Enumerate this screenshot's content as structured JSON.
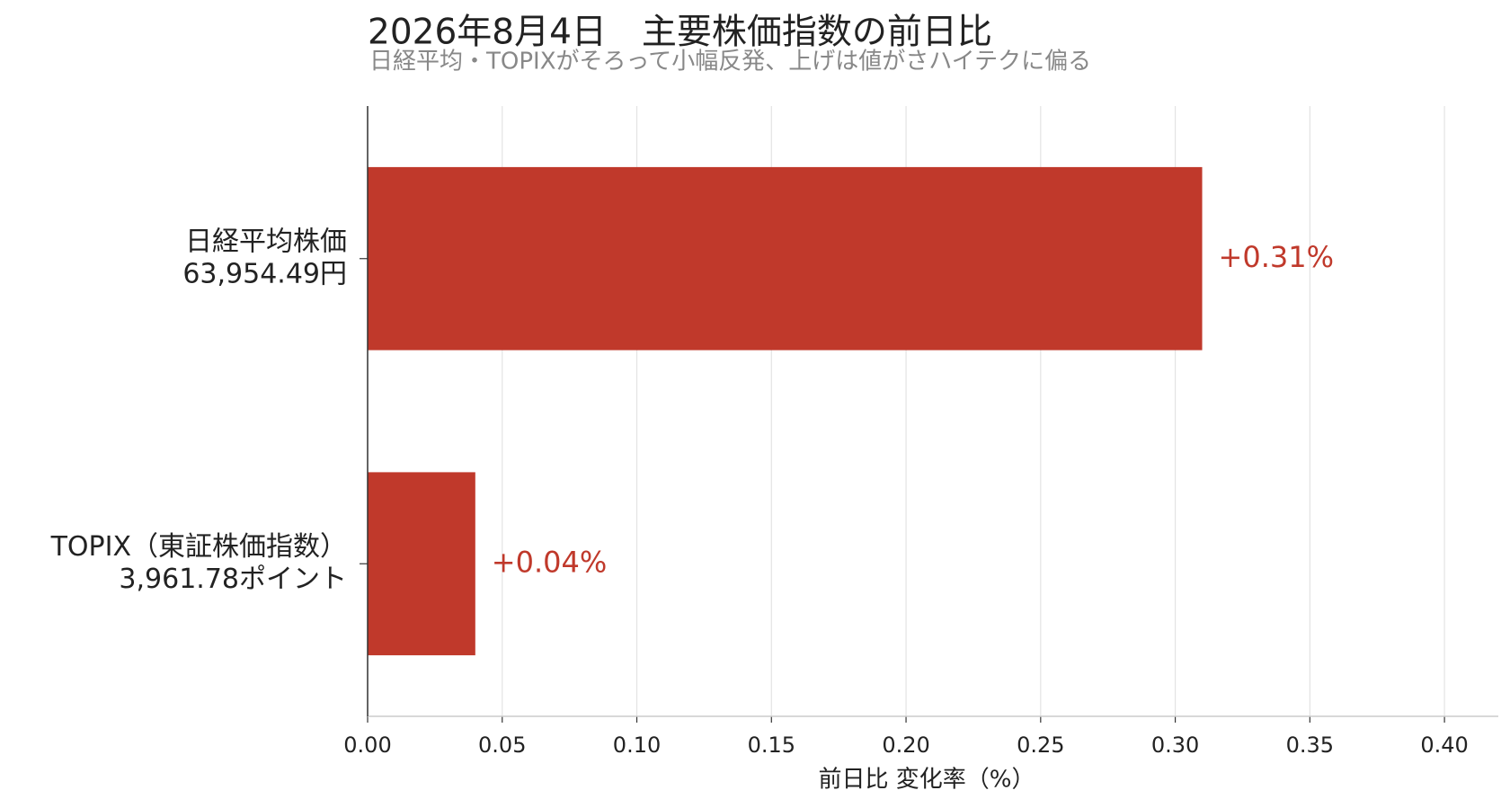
{
  "chart_data": {
    "type": "barh",
    "title": "2026年8月4日　主要株価指数の前日比",
    "subtitle": "日経平均・TOPIXがそろって小幅反発、上げは値がさハイテクに偏る",
    "xlabel": "前日比 変化率（%）",
    "categories": [
      [
        "日経平均株価",
        "63,954.49円"
      ],
      [
        "TOPIX（東証株価指数）",
        "3,961.78ポイント"
      ]
    ],
    "values": [
      0.31,
      0.04
    ],
    "value_labels": [
      "+0.31%",
      "+0.04%"
    ],
    "color": "#c0392b",
    "xlim": [
      0,
      0.42
    ],
    "xticks": [
      {
        "value": 0,
        "label": "0.00"
      },
      0.05,
      {
        "value": 0.1,
        "label": "0.10"
      },
      0.15,
      {
        "value": 0.2,
        "label": "0.20"
      },
      0.25,
      {
        "value": 0.3,
        "label": "0.30"
      },
      0.35,
      {
        "value": 0.4,
        "label": "0.40"
      }
    ],
    "grid": true
  }
}
